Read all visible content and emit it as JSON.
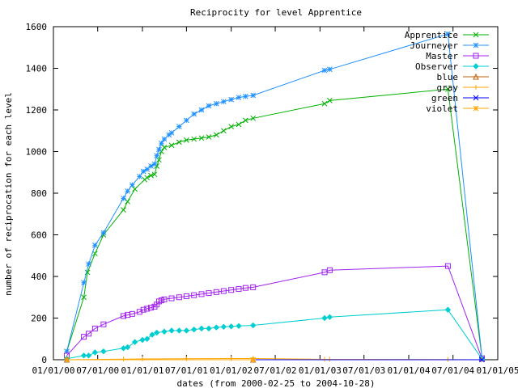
{
  "chart_data": {
    "type": "line",
    "title": "Reciprocity for level Apprentice",
    "xlabel": "dates (from 2000-02-25 to 2004-10-28)",
    "ylabel": "number of reciprocation for each level",
    "ylim": [
      0,
      1600
    ],
    "yticks": [
      0,
      200,
      400,
      600,
      800,
      1000,
      1200,
      1400,
      1600
    ],
    "xlim": [
      "2000-01-01",
      "2005-01-01"
    ],
    "xticks": [
      "2000-01-01",
      "2000-07-01",
      "2001-01-01",
      "2001-07-01",
      "2002-01-01",
      "2002-07-01",
      "2003-01-01",
      "2003-07-01",
      "2004-01-01",
      "2004-07-01",
      "2005-01-01"
    ],
    "xtick_labels": [
      "01/01/00",
      "07/01/00",
      "01/01/01",
      "07/01/01",
      "01/01/02",
      "07/01/02",
      "01/01/03",
      "07/01/03",
      "01/01/04",
      "07/01/04",
      "01/01/05"
    ],
    "grid": false,
    "legend_position": "top-right",
    "series": [
      {
        "name": "Apprentice",
        "color": "#00b000",
        "marker": "x",
        "x": [
          "2000-02-25",
          "2000-05-05",
          "2000-05-20",
          "2000-06-20",
          "2000-07-25",
          "2000-10-15",
          "2000-11-01",
          "2000-12-01",
          "2001-01-10",
          "2001-01-20",
          "2001-02-05",
          "2001-02-20",
          "2001-03-01",
          "2001-03-10",
          "2001-03-20",
          "2001-04-01",
          "2001-05-01",
          "2001-06-01",
          "2001-07-01",
          "2001-08-01",
          "2001-09-01",
          "2001-10-01",
          "2001-11-01",
          "2001-12-01",
          "2002-01-01",
          "2002-02-01",
          "2002-03-01",
          "2002-04-01",
          "2003-01-20",
          "2003-02-10",
          "2004-06-10",
          "2004-10-28"
        ],
        "y": [
          40,
          300,
          420,
          510,
          600,
          720,
          760,
          820,
          865,
          875,
          885,
          890,
          930,
          960,
          1000,
          1020,
          1030,
          1045,
          1055,
          1060,
          1065,
          1070,
          1080,
          1100,
          1120,
          1130,
          1150,
          1160,
          1230,
          1245,
          1300,
          10
        ]
      },
      {
        "name": "Journeyer",
        "color": "#1e90ff",
        "marker": "*",
        "x": [
          "2000-02-25",
          "2000-05-05",
          "2000-05-25",
          "2000-06-20",
          "2000-07-25",
          "2000-10-15",
          "2000-11-01",
          "2000-11-20",
          "2000-12-20",
          "2001-01-05",
          "2001-01-20",
          "2001-02-05",
          "2001-02-20",
          "2001-03-01",
          "2001-03-10",
          "2001-03-20",
          "2001-04-01",
          "2001-04-20",
          "2001-05-01",
          "2001-06-01",
          "2001-07-01",
          "2001-08-01",
          "2001-09-01",
          "2001-10-01",
          "2001-11-01",
          "2001-12-01",
          "2002-01-01",
          "2002-02-01",
          "2002-03-01",
          "2002-04-01",
          "2003-01-20",
          "2003-02-10",
          "2004-06-10",
          "2004-10-28"
        ],
        "y": [
          40,
          370,
          460,
          550,
          610,
          775,
          810,
          840,
          880,
          905,
          915,
          930,
          940,
          980,
          1010,
          1040,
          1060,
          1080,
          1090,
          1120,
          1150,
          1180,
          1200,
          1220,
          1230,
          1240,
          1250,
          1260,
          1265,
          1270,
          1390,
          1395,
          1565,
          10
        ]
      },
      {
        "name": "Master",
        "color": "#a020f0",
        "marker": "square",
        "x": [
          "2000-02-25",
          "2000-05-05",
          "2000-05-25",
          "2000-06-20",
          "2000-07-25",
          "2000-10-15",
          "2000-11-01",
          "2000-11-20",
          "2000-12-20",
          "2001-01-05",
          "2001-01-20",
          "2001-02-05",
          "2001-02-20",
          "2001-03-01",
          "2001-03-10",
          "2001-03-20",
          "2001-04-01",
          "2001-05-01",
          "2001-06-01",
          "2001-07-01",
          "2001-08-01",
          "2001-09-01",
          "2001-10-01",
          "2001-11-01",
          "2001-12-01",
          "2002-01-01",
          "2002-02-01",
          "2002-03-01",
          "2002-04-01",
          "2003-01-20",
          "2003-02-10",
          "2004-06-10",
          "2004-10-28"
        ],
        "y": [
          20,
          110,
          125,
          150,
          170,
          210,
          215,
          220,
          230,
          240,
          245,
          250,
          255,
          265,
          280,
          285,
          290,
          295,
          300,
          305,
          310,
          315,
          320,
          325,
          330,
          335,
          340,
          345,
          348,
          420,
          430,
          450,
          5
        ]
      },
      {
        "name": "Observer",
        "color": "#00ced1",
        "marker": "diamond",
        "x": [
          "2000-02-25",
          "2000-05-05",
          "2000-05-25",
          "2000-06-20",
          "2000-07-25",
          "2000-10-15",
          "2000-11-01",
          "2000-12-01",
          "2001-01-01",
          "2001-01-20",
          "2001-02-10",
          "2001-03-01",
          "2001-04-01",
          "2001-05-01",
          "2001-06-01",
          "2001-07-01",
          "2001-08-01",
          "2001-09-01",
          "2001-10-01",
          "2001-11-01",
          "2001-12-01",
          "2002-01-01",
          "2002-02-01",
          "2002-04-01",
          "2003-01-20",
          "2003-02-10",
          "2004-06-10",
          "2004-10-28"
        ],
        "y": [
          5,
          20,
          20,
          35,
          40,
          55,
          60,
          85,
          95,
          100,
          120,
          130,
          135,
          140,
          140,
          140,
          145,
          150,
          150,
          155,
          158,
          160,
          162,
          165,
          200,
          205,
          240,
          3
        ]
      },
      {
        "name": "blue",
        "color": "#c06000",
        "marker": "triangle",
        "x": [
          "2000-02-25",
          "2002-04-01"
        ],
        "y": [
          0,
          0
        ]
      },
      {
        "name": "gray",
        "color": "#ffa500",
        "marker": "|",
        "x": [
          "2000-02-25",
          "2000-10-15",
          "2001-01-01",
          "2001-07-01",
          "2002-01-01",
          "2002-04-01",
          "2003-01-20",
          "2003-02-10",
          "2004-06-10",
          "2004-10-28"
        ],
        "y": [
          0,
          3,
          4,
          5,
          6,
          6,
          2,
          2,
          1,
          0
        ]
      },
      {
        "name": "green",
        "color": "#0000ff",
        "marker": "x",
        "x": [
          "2000-02-25",
          "2004-10-28"
        ],
        "y": [
          0,
          0
        ]
      },
      {
        "name": "violet",
        "color": "#ffa500",
        "marker": "*",
        "x": [
          "2000-02-25",
          "2002-04-01"
        ],
        "y": [
          0,
          0
        ]
      }
    ]
  }
}
